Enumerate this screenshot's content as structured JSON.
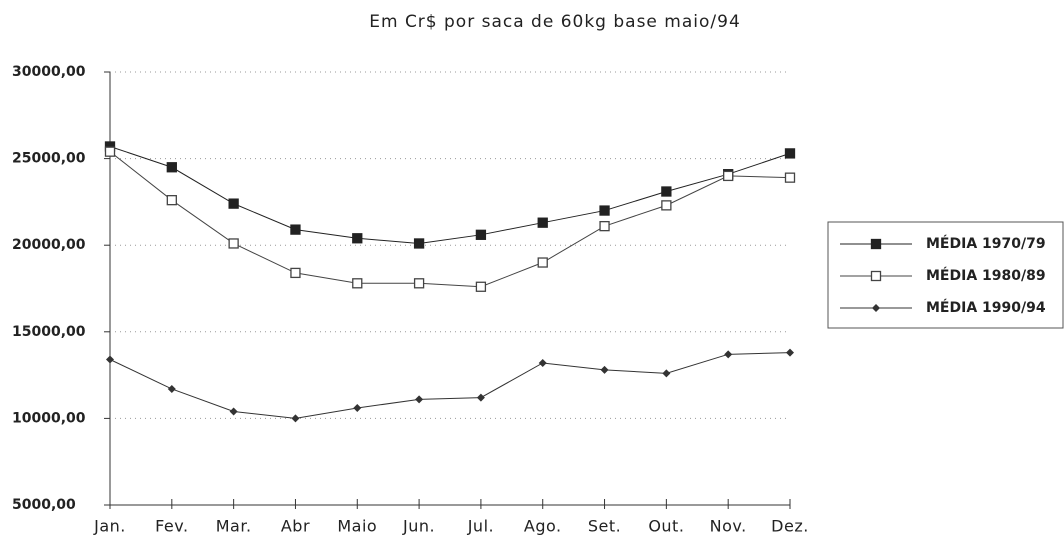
{
  "chart_data": {
    "type": "line",
    "title": "Em Cr$ por saca de 60kg base maio/94",
    "categories": [
      "Jan.",
      "Fev.",
      "Mar.",
      "Abr",
      "Maio",
      "Jun.",
      "Jul.",
      "Ago.",
      "Set.",
      "Out.",
      "Nov.",
      "Dez."
    ],
    "series": [
      {
        "name": "MÉDIA 1970/79",
        "color": "#222222",
        "marker": "filled-square",
        "values": [
          25700,
          24500,
          22400,
          20900,
          20400,
          20100,
          20600,
          21300,
          22000,
          23100,
          24100,
          25300
        ]
      },
      {
        "name": "MÉDIA 1980/89",
        "color": "#444444",
        "marker": "open-square",
        "values": [
          25400,
          22600,
          20100,
          18400,
          17800,
          17800,
          17600,
          19000,
          21100,
          22300,
          24000,
          23900
        ]
      },
      {
        "name": "MÉDIA 1990/94",
        "color": "#333333",
        "marker": "diamond",
        "values": [
          13400,
          11700,
          10400,
          10000,
          10600,
          11100,
          11200,
          13200,
          12800,
          12600,
          13700,
          13800
        ]
      }
    ],
    "ylim": [
      5000,
      30000
    ],
    "yticks": [
      {
        "value": 5000,
        "label": "5000,00"
      },
      {
        "value": 10000,
        "label": "10000,00"
      },
      {
        "value": 15000,
        "label": "15000,00"
      },
      {
        "value": 20000,
        "label": "20000,00"
      },
      {
        "value": 25000,
        "label": "25000,00"
      },
      {
        "value": 30000,
        "label": "30000,00"
      }
    ],
    "grid": true,
    "legend": "right"
  }
}
